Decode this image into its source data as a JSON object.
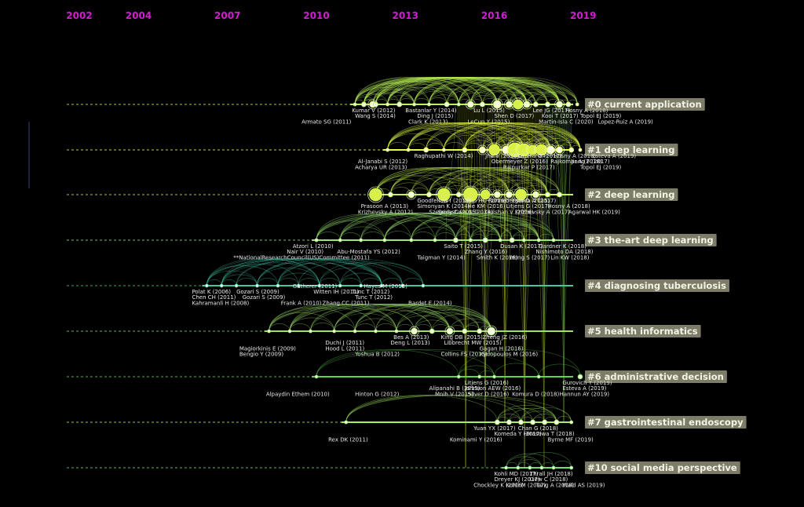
{
  "years": [
    "2002",
    "2004",
    "2007",
    "2010",
    "2013",
    "2016",
    "2019"
  ],
  "clusters": [
    {
      "label": "#0 current application",
      "line_color": "#b9f25a",
      "dash_color": "#9acd32",
      "nodes": [
        {
          "year": 2011.3,
          "r": 2
        },
        {
          "year": 2011.6,
          "r": 3
        },
        {
          "year": 2011.9,
          "r": 4
        },
        {
          "year": 2012.0,
          "r": 3
        },
        {
          "year": 2012.4,
          "r": 2
        },
        {
          "year": 2012.8,
          "r": 3
        },
        {
          "year": 2013.3,
          "r": 2
        },
        {
          "year": 2013.8,
          "r": 2
        },
        {
          "year": 2014.4,
          "r": 3
        },
        {
          "year": 2014.8,
          "r": 2
        },
        {
          "year": 2015.2,
          "r": 4
        },
        {
          "year": 2015.6,
          "r": 3
        },
        {
          "year": 2016.1,
          "r": 5
        },
        {
          "year": 2016.5,
          "r": 4
        },
        {
          "year": 2016.8,
          "r": 6
        },
        {
          "year": 2017.1,
          "r": 4
        },
        {
          "year": 2017.4,
          "r": 3
        },
        {
          "year": 2017.8,
          "r": 3
        },
        {
          "year": 2018.2,
          "r": 4
        },
        {
          "year": 2018.5,
          "r": 3
        },
        {
          "year": 2018.8,
          "r": 2
        }
      ],
      "labels": [
        {
          "text": "Kumar V (2012)",
          "year": 2011.2,
          "row": 0
        },
        {
          "text": "Bastanlar Y (2014)",
          "year": 2013.0,
          "row": 0
        },
        {
          "text": "Wang S (2014)",
          "year": 2011.3,
          "row": 1
        },
        {
          "text": "Ding J (2015)",
          "year": 2013.4,
          "row": 1
        },
        {
          "text": "Lu L (2015)",
          "year": 2015.3,
          "row": 0
        },
        {
          "text": "Shen D (2017)",
          "year": 2016.0,
          "row": 1
        },
        {
          "text": "Lee JG (2017)",
          "year": 2017.3,
          "row": 0
        },
        {
          "text": "Kooi T (2017)",
          "year": 2017.6,
          "row": 1
        },
        {
          "text": "Hosny A (2018)",
          "year": 2018.4,
          "row": 0
        },
        {
          "text": "Topol EJ (2019)",
          "year": 2018.9,
          "row": 1
        },
        {
          "text": "Armato SG (2011)",
          "year": 2009.5,
          "row": 2
        },
        {
          "text": "Clark K (2013)",
          "year": 2013.1,
          "row": 2
        },
        {
          "text": "LeCun Y (2015)",
          "year": 2015.1,
          "row": 2
        },
        {
          "text": "Martin-Isla C (2020)",
          "year": 2017.5,
          "row": 2
        },
        {
          "text": "Lopez-Ruiz A (2019)",
          "year": 2019.5,
          "row": 2
        }
      ]
    },
    {
      "label": "#1 deep learning",
      "line_color": "#eaff48",
      "dash_color": "#c8d232",
      "nodes": [
        {
          "year": 2012.4,
          "r": 2
        },
        {
          "year": 2013.1,
          "r": 2
        },
        {
          "year": 2013.7,
          "r": 3
        },
        {
          "year": 2014.3,
          "r": 2
        },
        {
          "year": 2015.0,
          "r": 3
        },
        {
          "year": 2015.6,
          "r": 4
        },
        {
          "year": 2016.0,
          "r": 7
        },
        {
          "year": 2016.4,
          "r": 5
        },
        {
          "year": 2016.7,
          "r": 9
        },
        {
          "year": 2017.0,
          "r": 8
        },
        {
          "year": 2017.3,
          "r": 6
        },
        {
          "year": 2017.6,
          "r": 7
        },
        {
          "year": 2017.9,
          "r": 5
        },
        {
          "year": 2018.2,
          "r": 4
        },
        {
          "year": 2018.6,
          "r": 3
        },
        {
          "year": 2018.9,
          "r": 2
        }
      ],
      "labels": [
        {
          "text": "Raghupathi W (2014)",
          "year": 2013.3,
          "row": 0
        },
        {
          "text": "Jha S (2016)",
          "year": 2015.7,
          "row": 0
        },
        {
          "text": "Litjens G (2017)",
          "year": 2016.8,
          "row": 0
        },
        {
          "text": "Hosny A (2018)",
          "year": 2018.0,
          "row": 0
        },
        {
          "text": "Esteva A (2019)",
          "year": 2019.3,
          "row": 0
        },
        {
          "text": "Al-Janabi S (2012)",
          "year": 2011.4,
          "row": 1
        },
        {
          "text": "Obermeyer Z (2016)",
          "year": 2015.9,
          "row": 1
        },
        {
          "text": "Rajkomar A (2018)",
          "year": 2017.9,
          "row": 1
        },
        {
          "text": "Jiang F (2017)",
          "year": 2018.6,
          "row": 1
        },
        {
          "text": "Acharya UR (2013)",
          "year": 2011.3,
          "row": 2
        },
        {
          "text": "Rajpurkar P (2017)",
          "year": 2016.3,
          "row": 2
        },
        {
          "text": "Topol EJ (2019)",
          "year": 2018.9,
          "row": 2
        }
      ]
    },
    {
      "label": "#2 deep learning",
      "line_color": "#c4f24e",
      "dash_color": "#9acd32",
      "nodes": [
        {
          "year": 2012.0,
          "r": 8
        },
        {
          "year": 2012.5,
          "r": 3
        },
        {
          "year": 2013.2,
          "r": 4
        },
        {
          "year": 2013.8,
          "r": 3
        },
        {
          "year": 2014.3,
          "r": 8
        },
        {
          "year": 2014.8,
          "r": 3
        },
        {
          "year": 2015.2,
          "r": 9
        },
        {
          "year": 2015.7,
          "r": 6
        },
        {
          "year": 2016.1,
          "r": 4
        },
        {
          "year": 2016.5,
          "r": 4
        },
        {
          "year": 2016.9,
          "r": 7
        },
        {
          "year": 2017.4,
          "r": 4
        },
        {
          "year": 2017.8,
          "r": 3
        },
        {
          "year": 2018.2,
          "r": 3
        }
      ],
      "labels": [
        {
          "text": "Goodfellow I (2014)",
          "year": 2013.4,
          "row": 0
        },
        {
          "text": "Shin HC (2016)",
          "year": 2015.0,
          "row": 0
        },
        {
          "text": "Ronneberger O (2015)",
          "year": 2015.8,
          "row": 0
        },
        {
          "text": "Esteva A (2017)",
          "year": 2016.6,
          "row": 0
        },
        {
          "text": "Prasoon A (2013)",
          "year": 2011.5,
          "row": 1
        },
        {
          "text": "Simonyan K (2014)",
          "year": 2013.4,
          "row": 1
        },
        {
          "text": "He KM (2016)",
          "year": 2015.1,
          "row": 1
        },
        {
          "text": "Litjens G (2017)",
          "year": 2016.4,
          "row": 1
        },
        {
          "text": "Hosny A (2018)",
          "year": 2017.8,
          "row": 1
        },
        {
          "text": "Krizhevsky A (2012)",
          "year": 2011.4,
          "row": 2
        },
        {
          "text": "Szegedy C (2015)",
          "year": 2013.8,
          "row": 2
        },
        {
          "text": "Srivastava N (2014)",
          "year": 2014.1,
          "row": 2
        },
        {
          "text": "Gulshan V (2016)",
          "year": 2015.7,
          "row": 2
        },
        {
          "text": "Krizhevsky A (2017)",
          "year": 2016.7,
          "row": 2
        },
        {
          "text": "Agarwal HK (2019)",
          "year": 2018.5,
          "row": 2
        }
      ]
    },
    {
      "label": "#3 the-art deep learning",
      "line_color": "#9be870",
      "dash_color": "#78c850",
      "nodes": [
        {
          "year": 2010.0,
          "r": 2
        },
        {
          "year": 2010.8,
          "r": 2
        },
        {
          "year": 2011.5,
          "r": 2
        },
        {
          "year": 2012.3,
          "r": 2
        },
        {
          "year": 2013.2,
          "r": 2
        },
        {
          "year": 2014.0,
          "r": 2
        },
        {
          "year": 2014.7,
          "r": 3
        },
        {
          "year": 2015.2,
          "r": 2
        },
        {
          "year": 2015.7,
          "r": 3
        },
        {
          "year": 2016.2,
          "r": 2
        },
        {
          "year": 2016.6,
          "r": 3
        },
        {
          "year": 2017.0,
          "r": 2
        },
        {
          "year": 2017.5,
          "r": 2
        },
        {
          "year": 2018.0,
          "r": 2
        }
      ],
      "labels": [
        {
          "text": "Atzori L (2010)",
          "year": 2009.2,
          "row": 0
        },
        {
          "text": "Saito T (2015)",
          "year": 2014.3,
          "row": 0
        },
        {
          "text": "Dusan K (2017)",
          "year": 2016.2,
          "row": 0
        },
        {
          "text": "Gardner K (2018)",
          "year": 2017.5,
          "row": 0
        },
        {
          "text": "Nair V (2010)",
          "year": 2009.0,
          "row": 1
        },
        {
          "text": "Abu-Mostafa YS (2012)",
          "year": 2010.7,
          "row": 1
        },
        {
          "text": "Zhang Y (2016)",
          "year": 2015.0,
          "row": 1
        },
        {
          "text": "Nishimoto DA (2018)",
          "year": 2017.4,
          "row": 1
        },
        {
          "text": "**NationalResearchCouncil(US)Committee (2011)",
          "year": 2007.2,
          "row": 2
        },
        {
          "text": "Taigman Y (2014)",
          "year": 2013.4,
          "row": 2
        },
        {
          "text": "Smith K (2016)",
          "year": 2015.4,
          "row": 2
        },
        {
          "text": "Wong S (2017)",
          "year": 2016.5,
          "row": 2
        },
        {
          "text": "Lin KW (2018)",
          "year": 2017.9,
          "row": 2
        }
      ]
    },
    {
      "label": "#4 diagnosing tuberculosis",
      "line_color": "#42c8a8",
      "dash_color": "#2aa886",
      "nodes": [
        {
          "year": 2006.3,
          "r": 2
        },
        {
          "year": 2006.8,
          "r": 2
        },
        {
          "year": 2007.3,
          "r": 2
        },
        {
          "year": 2008.0,
          "r": 2
        },
        {
          "year": 2008.7,
          "r": 2
        },
        {
          "year": 2009.4,
          "r": 2
        },
        {
          "year": 2010.1,
          "r": 2
        },
        {
          "year": 2010.8,
          "r": 2
        },
        {
          "year": 2011.5,
          "r": 2
        },
        {
          "year": 2012.2,
          "r": 2
        },
        {
          "year": 2012.9,
          "r": 2
        },
        {
          "year": 2013.6,
          "r": 2
        }
      ],
      "labels": [
        {
          "text": "Gatherer (2011)",
          "year": 2009.2,
          "row": -1
        },
        {
          "text": "Hayes M (2013)",
          "year": 2011.6,
          "row": -1
        },
        {
          "text": "Polat K (2006)",
          "year": 2005.8,
          "row": 0
        },
        {
          "text": "Gozari S (2009)",
          "year": 2007.3,
          "row": 0
        },
        {
          "text": "Witten IH (2011)",
          "year": 2009.9,
          "row": 0
        },
        {
          "text": "Tunc T (2012)",
          "year": 2011.2,
          "row": 0
        },
        {
          "text": "Chen CH (2011)",
          "year": 2005.8,
          "row": 1
        },
        {
          "text": "Gozari S (2009)",
          "year": 2007.5,
          "row": 1
        },
        {
          "text": "Tunc T (2012)",
          "year": 2011.3,
          "row": 1
        },
        {
          "text": "Kahramanli H (2008)",
          "year": 2005.8,
          "row": 2
        },
        {
          "text": "Frank A (2010)",
          "year": 2008.8,
          "row": 2
        },
        {
          "text": "Zhang CC (2011)",
          "year": 2010.2,
          "row": 2
        },
        {
          "text": "Bardet E (2014)",
          "year": 2013.1,
          "row": 2
        }
      ]
    },
    {
      "label": "#5 health informatics",
      "line_color": "#9ee068",
      "dash_color": "#6fb648",
      "nodes": [
        {
          "year": 2008.4,
          "r": 2
        },
        {
          "year": 2009.1,
          "r": 2
        },
        {
          "year": 2009.8,
          "r": 2
        },
        {
          "year": 2010.6,
          "r": 2
        },
        {
          "year": 2011.3,
          "r": 2
        },
        {
          "year": 2012.0,
          "r": 2
        },
        {
          "year": 2012.7,
          "r": 2
        },
        {
          "year": 2013.3,
          "r": 4
        },
        {
          "year": 2013.9,
          "r": 3
        },
        {
          "year": 2014.5,
          "r": 4
        },
        {
          "year": 2015.0,
          "r": 3
        },
        {
          "year": 2015.5,
          "r": 3
        },
        {
          "year": 2015.9,
          "r": 5
        }
      ],
      "labels": [
        {
          "text": "Bes A (2013)",
          "year": 2012.6,
          "row": 0
        },
        {
          "text": "King DB (2015)",
          "year": 2014.2,
          "row": 0
        },
        {
          "text": "Zheng JZ (2016)",
          "year": 2015.6,
          "row": 0
        },
        {
          "text": "Duchi J (2011)",
          "year": 2010.3,
          "row": 1
        },
        {
          "text": "Deng L (2013)",
          "year": 2012.5,
          "row": 1
        },
        {
          "text": "Libbrecht MW (2015)",
          "year": 2014.3,
          "row": 1
        },
        {
          "text": "Magiorkinis E (2009)",
          "year": 2007.4,
          "row": 2
        },
        {
          "text": "Hood L (2011)",
          "year": 2010.3,
          "row": 2
        },
        {
          "text": "Gagan H (2016)",
          "year": 2015.5,
          "row": 2
        },
        {
          "text": "Bengio Y (2009)",
          "year": 2007.4,
          "row": 3
        },
        {
          "text": "Yoshua B (2012)",
          "year": 2011.3,
          "row": 3
        },
        {
          "text": "Collins FS (2015)",
          "year": 2014.2,
          "row": 3
        },
        {
          "text": "Xydopoulos M (2016)",
          "year": 2015.5,
          "row": 3
        }
      ]
    },
    {
      "label": "#6 administrative decision",
      "line_color": "#5ed64a",
      "dash_color": "#4cb83a",
      "nodes": [
        {
          "year": 2010.0,
          "r": 2
        },
        {
          "year": 2014.8,
          "r": 2
        },
        {
          "year": 2015.5,
          "r": 2
        },
        {
          "year": 2016.0,
          "r": 2
        },
        {
          "year": 2017.5,
          "r": 2
        },
        {
          "year": 2018.9,
          "r": 3
        }
      ],
      "labels": [
        {
          "text": "Litjens G (2016)",
          "year": 2015.0,
          "row": 0
        },
        {
          "text": "Gurovich Y (2019)",
          "year": 2018.3,
          "row": 0
        },
        {
          "text": "Alipanahi B (2015)",
          "year": 2013.8,
          "row": 1
        },
        {
          "text": "Johnson AEW (2016)",
          "year": 2015.0,
          "row": 1
        },
        {
          "text": "Esteva A (2019)",
          "year": 2018.3,
          "row": 1
        },
        {
          "text": "Alpaydin Ethem (2010)",
          "year": 2008.3,
          "row": 2
        },
        {
          "text": "Hinton G (2012)",
          "year": 2011.3,
          "row": 2
        },
        {
          "text": "Mnih V (2015)",
          "year": 2014.0,
          "row": 2
        },
        {
          "text": "Silver D (2016)",
          "year": 2015.1,
          "row": 2
        },
        {
          "text": "Komura D (2018)",
          "year": 2016.6,
          "row": 2
        },
        {
          "text": "Hannun AY (2019)",
          "year": 2018.2,
          "row": 2
        }
      ]
    },
    {
      "label": "#7 gastrointestinal endoscopy",
      "line_color": "#a8f062",
      "dash_color": "#8acd40",
      "nodes": [
        {
          "year": 2011.0,
          "r": 2
        },
        {
          "year": 2016.1,
          "r": 3
        },
        {
          "year": 2016.5,
          "r": 3
        },
        {
          "year": 2016.9,
          "r": 3
        },
        {
          "year": 2017.3,
          "r": 3
        },
        {
          "year": 2017.7,
          "r": 3
        },
        {
          "year": 2018.1,
          "r": 3
        },
        {
          "year": 2018.6,
          "r": 2
        }
      ],
      "labels": [
        {
          "text": "Yuan YX (2017)",
          "year": 2015.3,
          "row": 0
        },
        {
          "text": "Chan G (2018)",
          "year": 2016.8,
          "row": 0
        },
        {
          "text": "Komeda Y (2017)",
          "year": 2016.0,
          "row": 1
        },
        {
          "text": "Hirasawa T (2018)",
          "year": 2017.0,
          "row": 1
        },
        {
          "text": "Rex DK (2011)",
          "year": 2010.4,
          "row": 2
        },
        {
          "text": "Kominami Y (2016)",
          "year": 2014.5,
          "row": 2
        },
        {
          "text": "Byrne MF (2019)",
          "year": 2017.8,
          "row": 2
        }
      ]
    },
    {
      "label": "#10 social media perspective",
      "line_color": "#70e070",
      "dash_color": "#50c050",
      "nodes": [
        {
          "year": 2016.4,
          "r": 2
        },
        {
          "year": 2016.8,
          "r": 2
        },
        {
          "year": 2017.2,
          "r": 2
        },
        {
          "year": 2017.6,
          "r": 2
        },
        {
          "year": 2018.0,
          "r": 2
        },
        {
          "year": 2018.6,
          "r": 2
        }
      ],
      "labels": [
        {
          "text": "Kohli MD (2017)",
          "year": 2016.0,
          "row": 0
        },
        {
          "text": "Thrall JH (2018)",
          "year": 2017.2,
          "row": 0
        },
        {
          "text": "Dreyer KJ (2017)",
          "year": 2016.0,
          "row": 1
        },
        {
          "text": "Liew C (2018)",
          "year": 2017.2,
          "row": 1
        },
        {
          "text": "Chockley K (2016)",
          "year": 2015.3,
          "row": 2
        },
        {
          "text": "Kohli M (2017)",
          "year": 2016.4,
          "row": 2
        },
        {
          "text": "Tang A (2018)",
          "year": 2017.4,
          "row": 2
        },
        {
          "text": "Wald AS (2019)",
          "year": 2018.3,
          "row": 2
        }
      ]
    }
  ]
}
